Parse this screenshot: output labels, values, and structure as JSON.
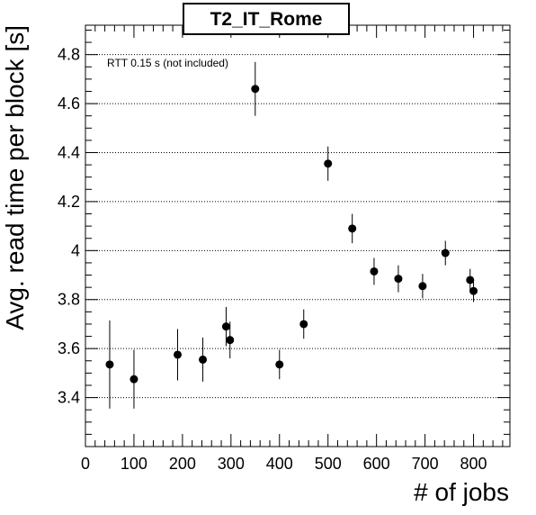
{
  "chart_data": {
    "type": "scatter",
    "title": "T2_IT_Rome",
    "xlabel": "# of jobs",
    "ylabel": "Avg. read time per block [s]",
    "annotation": "RTT 0.15 s (not included)",
    "xlim": [
      0,
      875
    ],
    "ylim": [
      3.2,
      4.92
    ],
    "x_ticks": [
      0,
      100,
      200,
      300,
      400,
      500,
      600,
      700,
      800
    ],
    "y_ticks": [
      3.4,
      3.6,
      3.8,
      4,
      4.2,
      4.4,
      4.6,
      4.8
    ],
    "grid": "horizontal dotted",
    "points": [
      {
        "x": 50,
        "y": 3.535,
        "err": 0.18
      },
      {
        "x": 100,
        "y": 3.475,
        "err": 0.12
      },
      {
        "x": 190,
        "y": 3.575,
        "err": 0.105
      },
      {
        "x": 242,
        "y": 3.555,
        "err": 0.09
      },
      {
        "x": 290,
        "y": 3.69,
        "err": 0.08
      },
      {
        "x": 298,
        "y": 3.635,
        "err": 0.075
      },
      {
        "x": 350,
        "y": 4.66,
        "err": 0.11
      },
      {
        "x": 400,
        "y": 3.535,
        "err": 0.06
      },
      {
        "x": 450,
        "y": 3.7,
        "err": 0.06
      },
      {
        "x": 500,
        "y": 4.355,
        "err": 0.07
      },
      {
        "x": 550,
        "y": 4.09,
        "err": 0.06
      },
      {
        "x": 595,
        "y": 3.915,
        "err": 0.055
      },
      {
        "x": 645,
        "y": 3.885,
        "err": 0.055
      },
      {
        "x": 695,
        "y": 3.855,
        "err": 0.05
      },
      {
        "x": 742,
        "y": 3.99,
        "err": 0.05
      },
      {
        "x": 793,
        "y": 3.88,
        "err": 0.045
      },
      {
        "x": 800,
        "y": 3.835,
        "err": 0.045
      }
    ]
  }
}
